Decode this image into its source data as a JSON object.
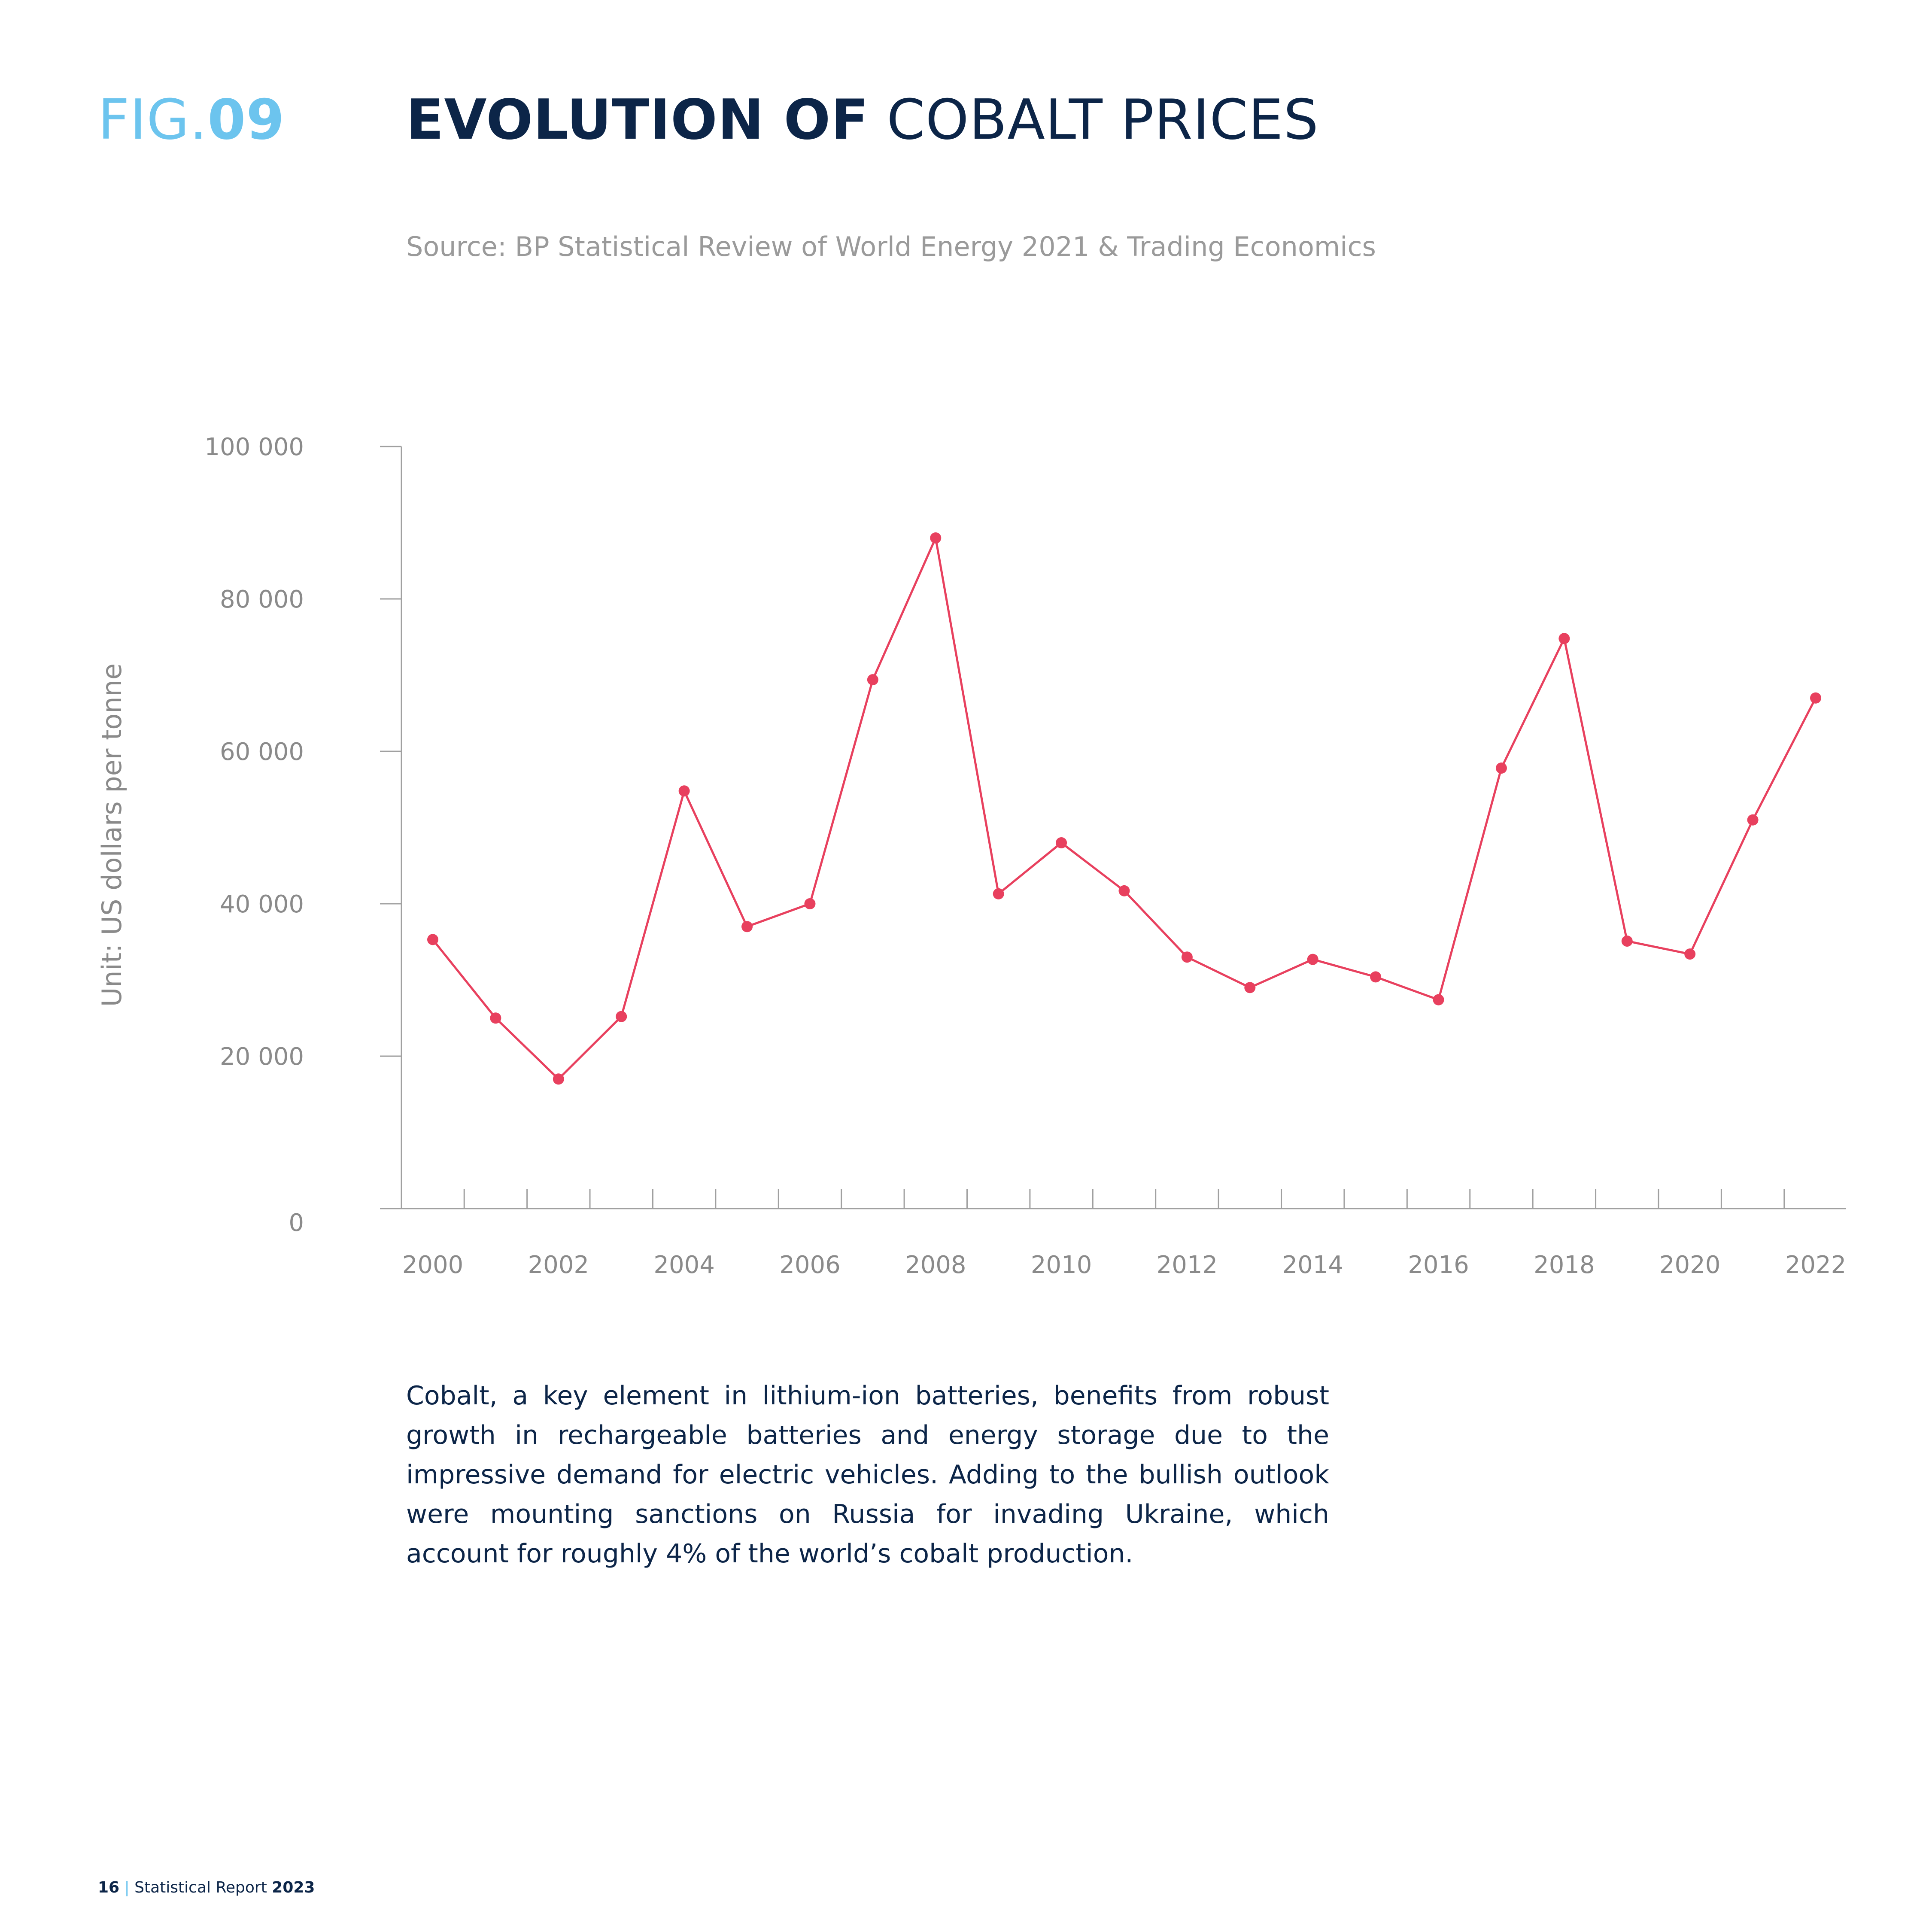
{
  "figure": {
    "prefix": "FIG.",
    "number": "09"
  },
  "title": {
    "bold": "EVOLUTION OF",
    "light": "COBALT PRICES"
  },
  "source": "Source: BP Statistical Review of World Energy 2021 & Trading Economics",
  "colors": {
    "series": "#e8405e",
    "axis": "#a0a0a0",
    "text": "#0c2548",
    "accent": "#6cc4ee",
    "tick_text": "#8a8a8a"
  },
  "chart_data": {
    "type": "line",
    "title": "EVOLUTION OF COBALT PRICES",
    "xlabel": "",
    "ylabel": "Unit: US dollars per tonne",
    "ylim": [
      0,
      100000
    ],
    "xlim": [
      2000,
      2022
    ],
    "yticks": [
      0,
      20000,
      40000,
      60000,
      80000,
      100000
    ],
    "ytick_labels": [
      "0",
      "20 000",
      "40 000",
      "60 000",
      "80 000",
      "100 000"
    ],
    "xtick_labels": [
      "2000",
      "2002",
      "2004",
      "2006",
      "2008",
      "2010",
      "2012",
      "2014",
      "2016",
      "2018",
      "2020",
      "2022"
    ],
    "grid": false,
    "legend": "none",
    "x": [
      2000,
      2001,
      2002,
      2003,
      2004,
      2005,
      2006,
      2007,
      2008,
      2009,
      2010,
      2011,
      2012,
      2013,
      2014,
      2015,
      2016,
      2017,
      2018,
      2019,
      2020,
      2021,
      2022
    ],
    "series": [
      {
        "values": [
          35300,
          25000,
          17000,
          25200,
          54800,
          37000,
          40000,
          69400,
          88000,
          41300,
          48000,
          41700,
          33000,
          29000,
          32700,
          30400,
          27400,
          57800,
          74800,
          35100,
          33400,
          51000,
          67000
        ]
      }
    ]
  },
  "body_text": "Cobalt, a key element in lithium-ion batteries, benefits from robust growth in rechargeable batteries and energy storage due to the impressive demand for electric vehicles. Adding to the bullish outlook were mounting sanctions on Russia for invading Ukraine, which account for roughly 4% of the world’s cobalt production.",
  "footer": {
    "page": "16",
    "separator": "|",
    "report": "Statistical Report",
    "year": "2023"
  }
}
